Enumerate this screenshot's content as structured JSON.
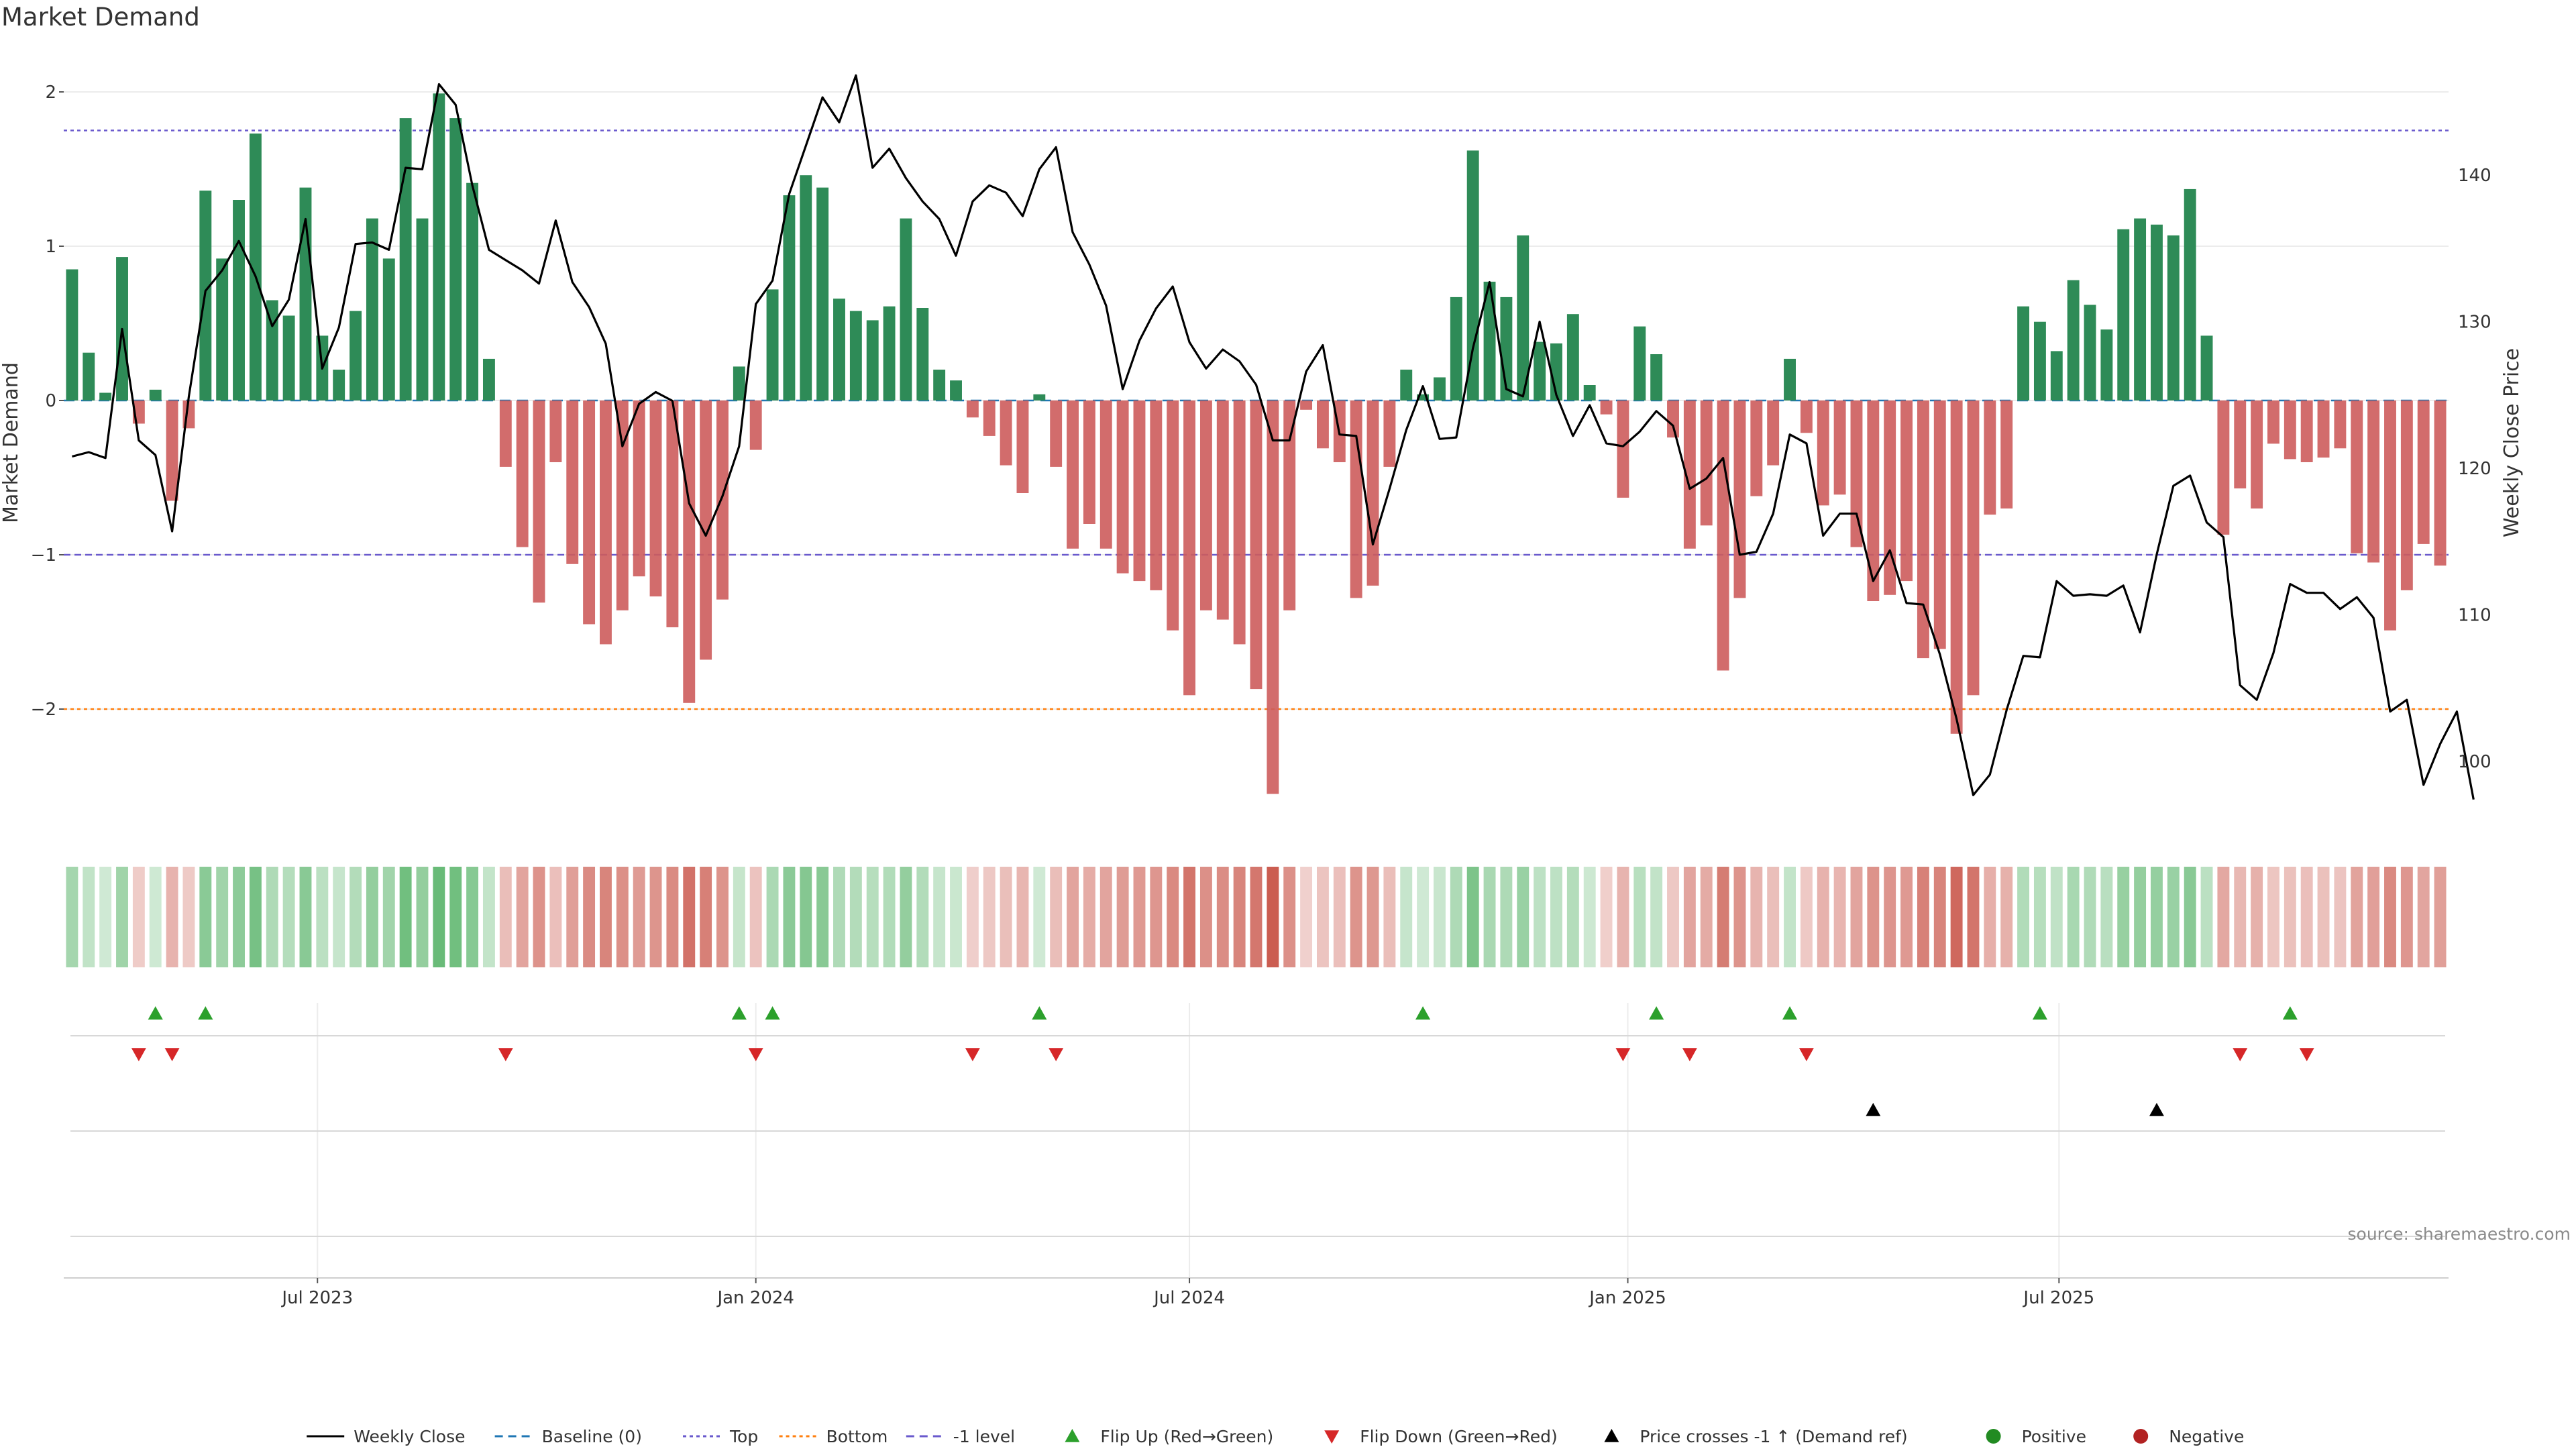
{
  "chart_data": {
    "type": "bar",
    "title": "Market Demand",
    "ylabel": "Market Demand",
    "y2label": "Weekly Close Price",
    "ylim": [
      -2.5,
      2.2
    ],
    "y2lim": [
      96.6,
      147.8
    ],
    "yticks": [
      -2,
      -1,
      0,
      1,
      2
    ],
    "y2ticks": [
      100,
      110,
      120,
      130,
      140
    ],
    "reference_lines": [
      {
        "name": "Top",
        "value": 1.75,
        "color": "#6a5acd"
      },
      {
        "name": "-1 level",
        "value": -1.0,
        "color": "#6a5acd"
      },
      {
        "name": "Bottom",
        "value": -2.0,
        "color": "#ff7f0e"
      },
      {
        "name": "Baseline (0)",
        "value": 0,
        "color": "#1f77b4"
      }
    ],
    "week_start": "2023-03-20",
    "demand": [
      0.85,
      0.31,
      0.05,
      0.93,
      -0.15,
      0.07,
      -0.65,
      -0.18,
      1.36,
      0.92,
      1.3,
      1.73,
      0.65,
      0.55,
      1.38,
      0.42,
      0.2,
      0.58,
      1.18,
      0.92,
      1.83,
      1.18,
      1.99,
      1.83,
      1.41,
      0.27,
      -0.43,
      -0.95,
      -1.31,
      -0.4,
      -1.06,
      -1.45,
      -1.58,
      -1.36,
      -1.14,
      -1.27,
      -1.47,
      -1.96,
      -1.68,
      -1.29,
      0.22,
      -0.32,
      0.72,
      1.33,
      1.46,
      1.38,
      0.66,
      0.58,
      0.52,
      0.61,
      1.18,
      0.6,
      0.2,
      0.13,
      -0.11,
      -0.23,
      -0.42,
      -0.6,
      0.04,
      -0.43,
      -0.96,
      -0.8,
      -0.96,
      -1.12,
      -1.17,
      -1.23,
      -1.49,
      -1.91,
      -1.36,
      -1.42,
      -1.58,
      -1.87,
      -2.55,
      -1.36,
      -0.06,
      -0.31,
      -0.4,
      -1.28,
      -1.2,
      -0.43,
      0.2,
      0.04,
      0.15,
      0.67,
      1.62,
      0.77,
      0.67,
      1.07,
      0.38,
      0.37,
      0.56,
      0.1,
      -0.09,
      -0.63,
      0.48,
      0.3,
      -0.24,
      -0.96,
      -0.81,
      -1.75,
      -1.28,
      -0.62,
      -0.42,
      0.27,
      -0.21,
      -0.68,
      -0.61,
      -0.95,
      -1.3,
      -1.26,
      -1.17,
      -1.67,
      -1.61,
      -2.16,
      -1.91,
      -0.74,
      -0.7,
      0.61,
      0.51,
      0.32,
      0.78,
      0.62,
      0.46,
      1.11,
      1.18,
      1.14,
      1.07,
      1.37,
      0.42,
      -0.87,
      -0.57,
      -0.7,
      -0.28,
      -0.38,
      -0.4,
      -0.37,
      -0.31,
      -0.99,
      -1.05,
      -1.49,
      -1.23,
      -0.93,
      -1.07
    ],
    "weekly_close": [
      120.8,
      121.1,
      120.7,
      129.5,
      121.9,
      120.9,
      115.7,
      124.9,
      132.1,
      133.5,
      135.5,
      133.1,
      129.7,
      131.5,
      137,
      126.8,
      129.6,
      135.3,
      135.4,
      134.9,
      140.5,
      140.4,
      146.2,
      144.8,
      139.3,
      134.9,
      134.2,
      133.5,
      132.6,
      136.9,
      132.7,
      131,
      128.5,
      121.5,
      124.4,
      125.2,
      124.6,
      117.6,
      115.4,
      118.1,
      121.5,
      131.2,
      132.8,
      138.7,
      142,
      145.3,
      143.6,
      146.8,
      140.5,
      141.8,
      139.8,
      138.2,
      137,
      134.5,
      138.2,
      139.3,
      138.8,
      137.2,
      140.4,
      141.9,
      136.1,
      133.9,
      131.1,
      125.4,
      128.7,
      130.9,
      132.4,
      128.6,
      126.8,
      128.1,
      127.3,
      125.7,
      121.9,
      121.9,
      126.6,
      128.4,
      122.3,
      122.2,
      114.8,
      118.6,
      122.6,
      125.6,
      122,
      122.1,
      128.2,
      132.7,
      125.4,
      124.9,
      130,
      125,
      122.2,
      124.3,
      121.7,
      121.5,
      122.5,
      123.9,
      122.9,
      118.6,
      119.3,
      120.7,
      114.1,
      114.3,
      116.9,
      122.3,
      121.7,
      115.4,
      116.9,
      116.9,
      112.3,
      114.4,
      110.8,
      110.7,
      107.3,
      102.9,
      97.7,
      99.1,
      103.5,
      107.2,
      107.1,
      112.3,
      111.3,
      111.4,
      111.3,
      112,
      108.8,
      114.1,
      118.8,
      119.5,
      116.3,
      115.3,
      105.2,
      104.2,
      107.4,
      112.1,
      111.5,
      111.5,
      110.4,
      111.2,
      109.8,
      103.4,
      104.2,
      98.4,
      101.2,
      103.4,
      97.4
    ],
    "xticks": [
      {
        "label": "Jul 2023",
        "date": "2023-07-01"
      },
      {
        "label": "Jan 2024",
        "date": "2024-01-01"
      },
      {
        "label": "Jul 2024",
        "date": "2024-07-01"
      },
      {
        "label": "Jan 2025",
        "date": "2025-01-01"
      },
      {
        "label": "Jul 2025",
        "date": "2025-07-01"
      }
    ],
    "flip_up_weeks": [
      5,
      8,
      40,
      42,
      58,
      81,
      95,
      103,
      118,
      133
    ],
    "flip_down_weeks": [
      4,
      6,
      26,
      41,
      54,
      59,
      93,
      97,
      104,
      130,
      134
    ],
    "price_cross_weeks": [
      108,
      125
    ],
    "source": "source: sharemaestro.com",
    "colors": {
      "positive": "#2e8b57",
      "negative": "#cd5c5c",
      "price": "#000000",
      "flip_up": "#2ca02c",
      "flip_down": "#d62728",
      "positive_dot": "#228b22",
      "negative_dot": "#b22222"
    },
    "legend": [
      {
        "label": "Weekly Close",
        "type": "line",
        "color": "#000000"
      },
      {
        "label": "Baseline (0)",
        "type": "dashed",
        "color": "#1f77b4"
      },
      {
        "label": "Top",
        "type": "dotted",
        "color": "#6a5acd"
      },
      {
        "label": "Bottom",
        "type": "dotted",
        "color": "#ff7f0e"
      },
      {
        "label": "-1 level",
        "type": "dashed",
        "color": "#6a5acd"
      },
      {
        "label": "Flip Up (Red→Green)",
        "type": "tri-up",
        "color": "#2ca02c"
      },
      {
        "label": "Flip Down (Green→Red)",
        "type": "tri-down",
        "color": "#d62728"
      },
      {
        "label": "Price crosses -1 ↑ (Demand ref)",
        "type": "tri-up",
        "color": "#000000"
      },
      {
        "label": "Positive",
        "type": "dot",
        "color": "#228b22"
      },
      {
        "label": "Negative",
        "type": "dot",
        "color": "#b22222"
      }
    ]
  }
}
